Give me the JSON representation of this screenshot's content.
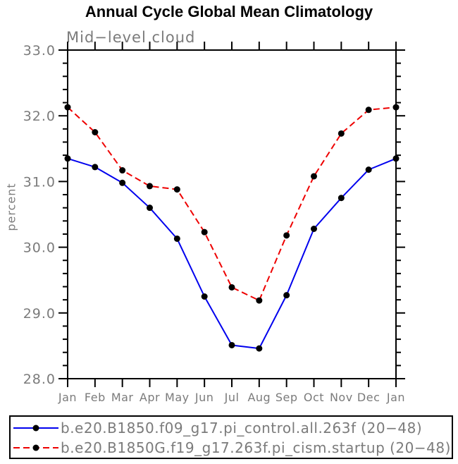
{
  "palette": {
    "axis_black": "#000000",
    "label_gray": "#7b7b7b",
    "background": "#ffffff"
  },
  "chart_data": {
    "type": "line",
    "title": "Annual Cycle Global Mean Climatology",
    "subtitle": "Mid−level cloud",
    "ylabel": "percent",
    "xlabel": "",
    "grid": false,
    "legend_position": "bottom",
    "categories": [
      "Jan",
      "Feb",
      "Mar",
      "Apr",
      "May",
      "Jun",
      "Jul",
      "Aug",
      "Sep",
      "Oct",
      "Nov",
      "Dec",
      "Jan"
    ],
    "ylim": [
      28.0,
      33.0
    ],
    "ytick_step": 1.0,
    "yminor_step": 0.2,
    "ytick_labels": [
      "28.0",
      "29.0",
      "30.0",
      "31.0",
      "32.0",
      "33.0"
    ],
    "series": [
      {
        "name": "b.e20.B1850.f09_g17.pi_control.all.263f (20−48)",
        "color": "#0000ee",
        "line_style": "solid",
        "marker": "filled-circle",
        "marker_color": "#000000",
        "values": [
          31.35,
          31.22,
          30.98,
          30.6,
          30.13,
          29.25,
          28.51,
          28.46,
          29.27,
          30.28,
          30.75,
          31.18,
          31.35
        ]
      },
      {
        "name": "b.e20.B1850G.f19_g17.263f.pi_cism.startup (20−48)",
        "color": "#ee0000",
        "line_style": "dashed",
        "marker": "filled-circle",
        "marker_color": "#000000",
        "values": [
          32.13,
          31.75,
          31.17,
          30.93,
          30.88,
          30.23,
          29.39,
          29.19,
          30.18,
          31.08,
          31.73,
          32.09,
          32.13
        ]
      }
    ]
  }
}
